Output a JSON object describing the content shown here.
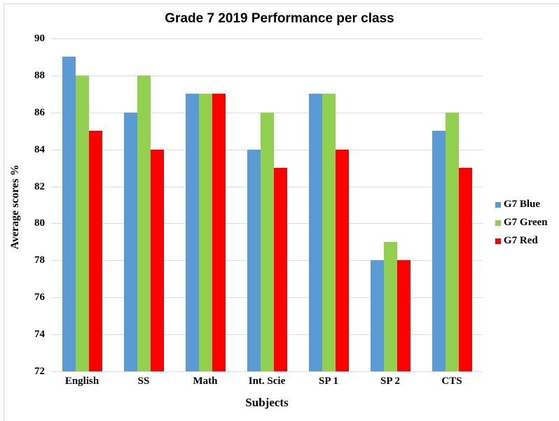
{
  "chart_data": {
    "type": "bar",
    "title": "Grade 7 2019 Performance per class",
    "xlabel": "Subjects",
    "ylabel": "Average scores %",
    "categories": [
      "English",
      "SS",
      "Math",
      "Int. Scie",
      "SP 1",
      "SP 2",
      "CTS"
    ],
    "series": [
      {
        "name": "G7 Blue",
        "color": "#5B9BD5",
        "values": [
          89,
          86,
          87,
          84,
          87,
          78,
          85
        ]
      },
      {
        "name": "G7 Green",
        "color": "#92D050",
        "values": [
          88,
          88,
          87,
          86,
          87,
          79,
          86
        ]
      },
      {
        "name": "G7 Red",
        "color": "#FF0000",
        "values": [
          85,
          84,
          87,
          83,
          84,
          78,
          83
        ]
      }
    ],
    "ylim": [
      72,
      90
    ],
    "ytick_step": 2,
    "grid": true,
    "legend_position": "right",
    "colors": {
      "gridline": "#DCDCDC",
      "frame_border": "#D6D6D6",
      "text": "#000000",
      "background": "#FFFFFF"
    }
  }
}
